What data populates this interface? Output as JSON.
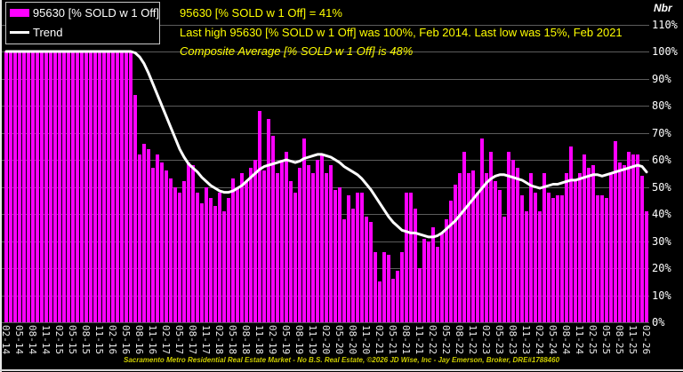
{
  "legend": {
    "series_label": "95630 [% SOLD w 1 Off]",
    "trend_label": "Trend"
  },
  "titles": {
    "line1": "95630 [% SOLD w 1 Off] = 41%",
    "line2": "Last high 95630 [% SOLD w 1 Off] was 100%, Feb 2014. Last low was 15%, Feb 2021",
    "line3": "Composite Average [% SOLD w 1 Off] is 48%"
  },
  "axis": {
    "right_axis_title": "Nbr"
  },
  "footer": {
    "text": "Sacramento Metro Residential Real Estate Market - No B.S. Real Estate, ©2026 JD Wise, Inc - Jay Emerson, Broker, DRE#1788460"
  },
  "colors": {
    "background": "#000000",
    "bar": "#ff00ff",
    "trend": "#ffffff",
    "title_text": "#ffff00",
    "grid": "#5c5c5c",
    "tick_text": "#ffffff"
  },
  "chart_data": {
    "type": "bar",
    "title": "95630 [% SOLD w 1 Off] = 41%",
    "subtitle": "Last high 95630 [% SOLD w 1 Off] was 100%, Feb 2014. Last low was 15%, Feb 2021",
    "annotation": "Composite Average [% SOLD w 1 Off] is 48%",
    "xlabel": "",
    "ylabel": "Nbr",
    "ylim": [
      0,
      110
    ],
    "ytick_labels": [
      "0%",
      "10%",
      "20%",
      "30%",
      "40%",
      "50%",
      "60%",
      "70%",
      "80%",
      "90%",
      "100%",
      "110%"
    ],
    "ytick_values": [
      0,
      10,
      20,
      30,
      40,
      50,
      60,
      70,
      80,
      90,
      100,
      110
    ],
    "grid": "horizontal",
    "legend_position": "top-left",
    "bars_start_month": "2014-02",
    "bars_end_month": "2026-02",
    "bar_interval": "monthly",
    "xtick_every_n_bars": 3,
    "xtick_labels": [
      "02-14",
      "05-14",
      "08-14",
      "11-14",
      "02-15",
      "05-15",
      "08-15",
      "11-15",
      "02-16",
      "05-16",
      "08-16",
      "11-16",
      "02-17",
      "05-17",
      "08-17",
      "11-17",
      "02-18",
      "05-18",
      "08-18",
      "11-18",
      "02-19",
      "05-19",
      "08-19",
      "11-19",
      "02-20",
      "05-20",
      "08-20",
      "11-20",
      "02-21",
      "05-21",
      "08-21",
      "11-21",
      "02-22",
      "05-22",
      "08-22",
      "11-22",
      "02-23",
      "05-23",
      "08-23",
      "11-23",
      "02-24",
      "05-24",
      "08-24",
      "11-24",
      "02-25",
      "05-25",
      "08-25",
      "11-25",
      "02-26"
    ],
    "series": [
      {
        "name": "95630 [% SOLD w 1 Off]",
        "type": "bar",
        "color": "#ff00ff",
        "values": [
          100,
          100,
          100,
          100,
          100,
          100,
          100,
          100,
          100,
          100,
          100,
          100,
          100,
          100,
          100,
          100,
          100,
          100,
          100,
          100,
          100,
          100,
          100,
          100,
          100,
          100,
          100,
          100,
          100,
          84,
          62,
          66,
          64,
          57,
          62,
          59,
          56,
          53,
          50,
          48,
          52,
          59,
          58,
          48,
          44,
          50,
          46,
          43,
          48,
          41,
          46,
          53,
          50,
          55,
          52,
          57,
          60,
          78,
          56,
          75,
          69,
          55,
          60,
          63,
          52,
          48,
          57,
          68,
          58,
          55,
          60,
          62,
          55,
          58,
          49,
          50,
          38,
          47,
          42,
          48,
          48,
          39,
          37,
          26,
          15,
          26,
          25,
          16,
          19,
          26,
          48,
          48,
          42,
          20,
          31,
          30,
          35,
          28,
          33,
          38,
          45,
          51,
          55,
          63,
          55,
          56,
          48,
          68,
          55,
          63,
          52,
          49,
          39,
          63,
          60,
          57,
          47,
          41,
          55,
          48,
          41,
          55,
          48,
          46,
          47,
          47,
          55,
          65,
          52,
          55,
          62,
          57,
          58,
          47,
          47,
          46,
          55,
          67,
          59,
          58,
          63,
          62,
          62,
          54,
          41
        ]
      },
      {
        "name": "Trend",
        "type": "line",
        "color": "#ffffff",
        "values": [
          100,
          100,
          100,
          100,
          100,
          100,
          100,
          100,
          100,
          100,
          100,
          100,
          100,
          100,
          100,
          100,
          100,
          100,
          100,
          100,
          100,
          100,
          100,
          100,
          100,
          100,
          100,
          100,
          100,
          99.5,
          98,
          95.5,
          92,
          88,
          84,
          80,
          76,
          72,
          68,
          64,
          61,
          58.5,
          57,
          55.5,
          53.5,
          52,
          50.5,
          49.5,
          48.5,
          48,
          48,
          48.5,
          49.5,
          50.5,
          52,
          53.5,
          55,
          56.5,
          57.5,
          58,
          58.5,
          59,
          59.5,
          60,
          59.5,
          59,
          59.5,
          60.5,
          61,
          61.5,
          62,
          62,
          61.5,
          61,
          60,
          59,
          57.5,
          56.5,
          55.5,
          54.5,
          53,
          51,
          49,
          46.5,
          44,
          41.5,
          39,
          37,
          35.5,
          34,
          33.5,
          33,
          33,
          32.5,
          32,
          31.5,
          31.5,
          32,
          33,
          34.5,
          36,
          37.5,
          39.5,
          41.5,
          43.5,
          45.5,
          47.5,
          49.5,
          51.5,
          53,
          54,
          54.5,
          54.5,
          54,
          53.5,
          53,
          52.5,
          51.5,
          50.5,
          50,
          49.5,
          50,
          50.5,
          51,
          51,
          51.5,
          52,
          52.5,
          52.5,
          53,
          53.5,
          54,
          54.5,
          54.5,
          54,
          54.5,
          55,
          55.5,
          56,
          56.5,
          57,
          57.5,
          58,
          57.5,
          55.5
        ]
      }
    ]
  }
}
